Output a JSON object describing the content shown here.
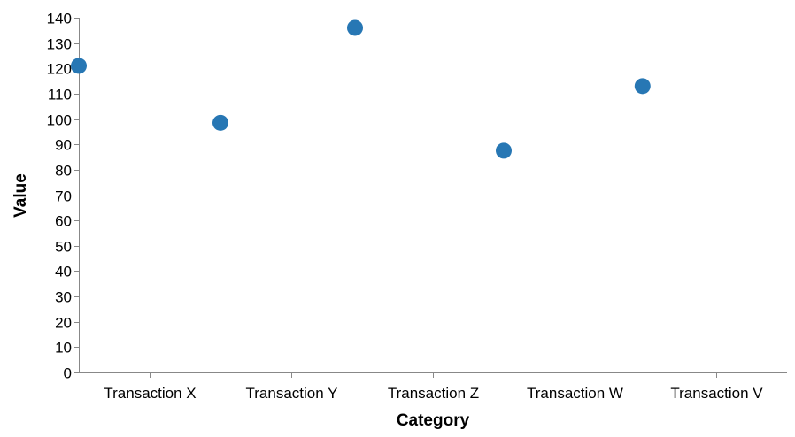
{
  "chart_data": {
    "type": "scatter",
    "x_axis": {
      "label": "Category",
      "ticks": [
        "Transaction X",
        "Transaction Y",
        "Transaction Z",
        "Transaction W",
        "Transaction V"
      ],
      "range": [
        0,
        5
      ]
    },
    "y_axis": {
      "label": "Value",
      "ticks": [
        0,
        10,
        20,
        30,
        40,
        50,
        60,
        70,
        80,
        90,
        100,
        110,
        120,
        130,
        140
      ],
      "range": [
        0,
        140
      ]
    },
    "points": [
      {
        "x": 0.0,
        "y": 121
      },
      {
        "x": 1.0,
        "y": 98.5
      },
      {
        "x": 1.95,
        "y": 136
      },
      {
        "x": 3.0,
        "y": 87.5
      },
      {
        "x": 3.98,
        "y": 113
      }
    ],
    "point_color": "#2777b4",
    "grid": false,
    "legend": "none"
  }
}
